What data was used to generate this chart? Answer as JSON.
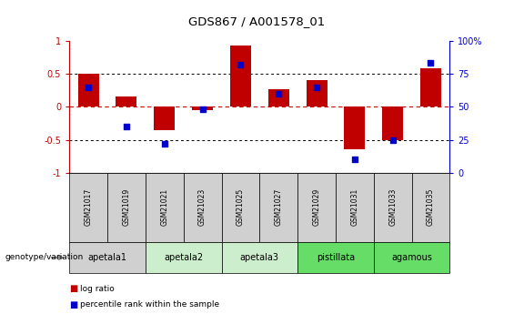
{
  "title": "GDS867 / A001578_01",
  "samples": [
    "GSM21017",
    "GSM21019",
    "GSM21021",
    "GSM21023",
    "GSM21025",
    "GSM21027",
    "GSM21029",
    "GSM21031",
    "GSM21033",
    "GSM21035"
  ],
  "log_ratios": [
    0.5,
    0.15,
    -0.35,
    -0.05,
    0.93,
    0.27,
    0.4,
    -0.65,
    -0.5,
    0.58
  ],
  "percentile_ranks": [
    65,
    35,
    22,
    48,
    82,
    60,
    65,
    10,
    25,
    83
  ],
  "bar_color": "#C00000",
  "dot_color": "#0000CC",
  "ylim": [
    -1,
    1
  ],
  "yticks_left": [
    -1,
    -0.5,
    0,
    0.5,
    1
  ],
  "ytick_labels_left": [
    "-1",
    "-0.5",
    "0",
    "0.5",
    "1"
  ],
  "yticks_right": [
    0,
    25,
    50,
    75,
    100
  ],
  "ytick_labels_right": [
    "0",
    "25",
    "50",
    "75",
    "100%"
  ],
  "genotype_groups": [
    {
      "label": "apetala1",
      "start": 0,
      "end": 2,
      "color": "#d0d0d0"
    },
    {
      "label": "apetala2",
      "start": 2,
      "end": 4,
      "color": "#cceecc"
    },
    {
      "label": "apetala3",
      "start": 4,
      "end": 6,
      "color": "#cceecc"
    },
    {
      "label": "pistillata",
      "start": 6,
      "end": 8,
      "color": "#66dd66"
    },
    {
      "label": "agamous",
      "start": 8,
      "end": 10,
      "color": "#66dd66"
    }
  ],
  "legend_items": [
    {
      "label": "log ratio",
      "color": "#C00000"
    },
    {
      "label": "percentile rank within the sample",
      "color": "#0000CC"
    }
  ],
  "genotype_label": "genotype/variation",
  "left_axis_color": "#C00000",
  "right_axis_color": "#0000CC",
  "sample_box_color": "#d0d0d0",
  "background_color": "#ffffff",
  "bar_width": 0.55
}
